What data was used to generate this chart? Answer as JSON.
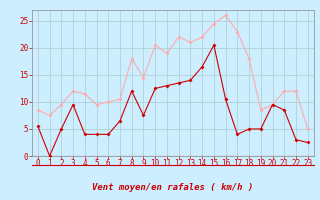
{
  "x": [
    0,
    1,
    2,
    3,
    4,
    5,
    6,
    7,
    8,
    9,
    10,
    11,
    12,
    13,
    14,
    15,
    16,
    17,
    18,
    19,
    20,
    21,
    22,
    23
  ],
  "wind_avg": [
    5.5,
    0,
    5,
    9.5,
    4,
    4,
    4,
    6.5,
    12,
    7.5,
    12.5,
    13,
    13.5,
    14,
    16.5,
    20.5,
    10.5,
    4,
    5,
    5,
    9.5,
    8.5,
    3,
    2.5
  ],
  "wind_gust": [
    8.5,
    7.5,
    9.5,
    12,
    11.5,
    9.5,
    10,
    10.5,
    18,
    14.5,
    20.5,
    19,
    22,
    21,
    22,
    24.5,
    26,
    23,
    18,
    8.5,
    9.5,
    12,
    12,
    5
  ],
  "color_avg": "#cc0000",
  "color_gust": "#ffaaaa",
  "bg_color": "#cceeff",
  "grid_color": "#aacccc",
  "xlabel": "Vent moyen/en rafales ( km/h )",
  "ylim": [
    0,
    27
  ],
  "yticks": [
    0,
    5,
    10,
    15,
    20,
    25
  ],
  "xlim": [
    -0.5,
    23.5
  ],
  "tick_color": "#cc0000",
  "spine_color": "#888888",
  "label_fontsize": 5.5,
  "xlabel_fontsize": 6.5
}
